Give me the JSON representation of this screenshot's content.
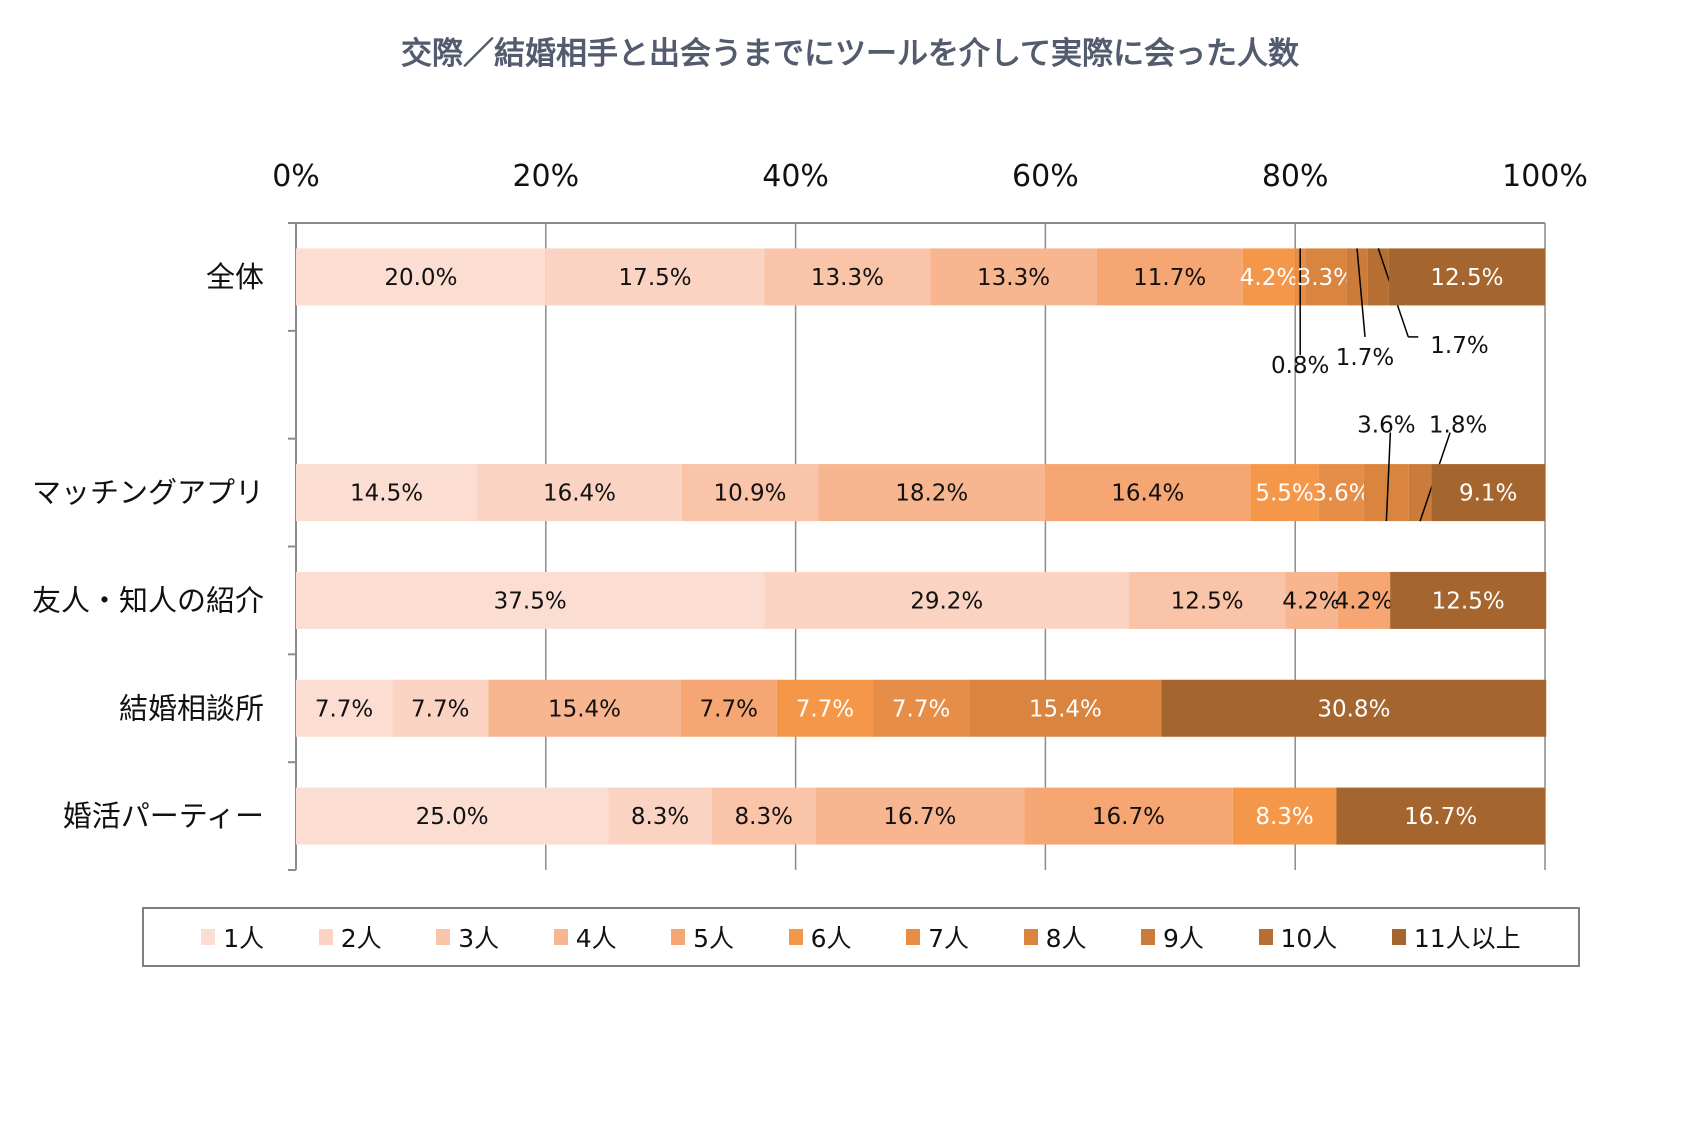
{
  "chart_data": {
    "type": "bar",
    "orientation": "horizontal",
    "stacked": "percent",
    "title": "交際／結婚相手と出会うまでにツールを介して実際に会った人数",
    "xlim": [
      0,
      100
    ],
    "xticks": [
      "0%",
      "20%",
      "40%",
      "60%",
      "80%",
      "100%"
    ],
    "grid": true,
    "legend_position": "bottom",
    "categories": [
      "全体",
      "",
      "マッチングアプリ",
      "友人・知人の紹介",
      "結婚相談所",
      "婚活パーティー"
    ],
    "series": [
      {
        "name": "1人",
        "color": "#fbded1",
        "values": [
          20.0,
          null,
          14.5,
          37.5,
          7.7,
          25.0
        ]
      },
      {
        "name": "2人",
        "color": "#fad3c2",
        "values": [
          17.5,
          null,
          16.4,
          29.2,
          7.7,
          8.3
        ]
      },
      {
        "name": "3人",
        "color": "#f9c4a8",
        "values": [
          13.3,
          null,
          10.9,
          12.5,
          0,
          8.3
        ]
      },
      {
        "name": "4人",
        "color": "#f7b590",
        "values": [
          13.3,
          null,
          18.2,
          4.2,
          15.4,
          16.7
        ]
      },
      {
        "name": "5人",
        "color": "#f5a672",
        "values": [
          11.7,
          null,
          16.4,
          4.2,
          7.7,
          16.7
        ]
      },
      {
        "name": "6人",
        "color": "#f49748",
        "values": [
          4.2,
          null,
          5.5,
          0,
          7.7,
          8.3
        ]
      },
      {
        "name": "7人",
        "color": "#e68d48",
        "values": [
          0.8,
          null,
          3.6,
          0,
          7.7,
          0
        ]
      },
      {
        "name": "8人",
        "color": "#d9843f",
        "values": [
          3.3,
          null,
          3.6,
          0,
          15.4,
          0
        ]
      },
      {
        "name": "9人",
        "color": "#cb7c3a",
        "values": [
          1.7,
          null,
          1.8,
          0,
          0,
          0
        ]
      },
      {
        "name": "10人",
        "color": "#b56f33",
        "values": [
          1.7,
          null,
          0,
          0,
          0,
          0
        ]
      },
      {
        "name": "11人以上",
        "color": "#a5652e",
        "values": [
          12.5,
          null,
          9.1,
          12.5,
          30.8,
          16.7
        ]
      }
    ]
  }
}
